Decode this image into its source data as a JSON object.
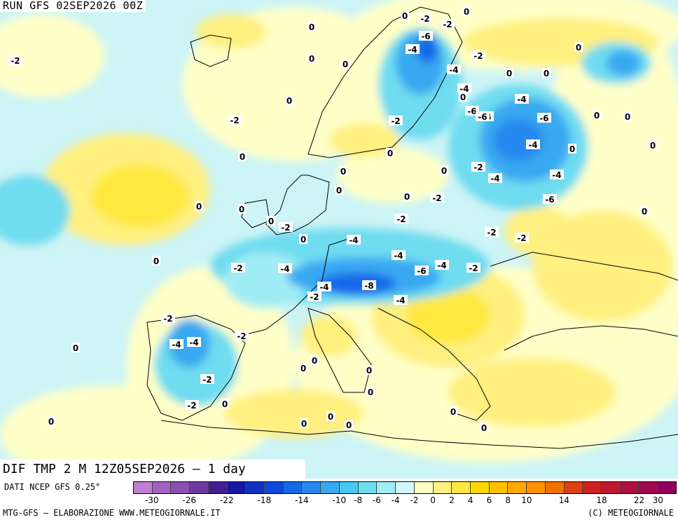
{
  "header": {
    "run_label": "RUN GFS 02SEP2026 00Z"
  },
  "title": "DIF TMP 2 M 12Z05SEP2026 – 1 day",
  "footer": {
    "source": "DATI NCEP GFS 0.25°",
    "credit_left": "MTG-GFS – ELABORAZIONE WWW.METEOGIORNALE.IT",
    "credit_right": "(C) METEOGIORNALE"
  },
  "legend": {
    "colors": [
      "#c07fd0",
      "#a064c0",
      "#8a4fb0",
      "#6f3aa0",
      "#402090",
      "#1818a0",
      "#1030c0",
      "#1048d8",
      "#1868e8",
      "#2888f0",
      "#38a8f0",
      "#48c8f0",
      "#70dcf0",
      "#a0ecf4",
      "#d0f8f8",
      "#ffffc8",
      "#fff080",
      "#ffe840",
      "#ffd800",
      "#ffc000",
      "#ffa800",
      "#ff9000",
      "#f07000",
      "#e04010",
      "#d02020",
      "#c01830",
      "#b01040",
      "#a00850",
      "#900060"
    ],
    "tick_labels": [
      "-30",
      "-26",
      "-22",
      "-18",
      "-14",
      "-10",
      "-8",
      "-6",
      "-4",
      "-2",
      "0",
      "2",
      "4",
      "6",
      "8",
      "10",
      "14",
      "18",
      "22",
      "30"
    ]
  },
  "contour_labels": [
    {
      "text": "-2"
    },
    {
      "text": "0"
    },
    {
      "text": "0"
    },
    {
      "text": "0"
    },
    {
      "text": "0"
    },
    {
      "text": "-2"
    },
    {
      "text": "-2"
    },
    {
      "text": "-6"
    },
    {
      "text": "-4"
    },
    {
      "text": "-2"
    },
    {
      "text": "-4"
    },
    {
      "text": "-2"
    },
    {
      "text": "-4"
    },
    {
      "text": "0"
    },
    {
      "text": "-4"
    },
    {
      "text": "-4"
    },
    {
      "text": "-2"
    },
    {
      "text": "-6"
    },
    {
      "text": "-6"
    },
    {
      "text": "-6"
    },
    {
      "text": "-4"
    },
    {
      "text": "0"
    },
    {
      "text": "-4"
    },
    {
      "text": "-2"
    },
    {
      "text": "-6"
    },
    {
      "text": "-4"
    },
    {
      "text": "-2"
    },
    {
      "text": "-2"
    },
    {
      "text": "-4"
    },
    {
      "text": "-2"
    },
    {
      "text": "-2"
    },
    {
      "text": "-4"
    },
    {
      "text": "-4"
    },
    {
      "text": "-8"
    },
    {
      "text": "-4"
    },
    {
      "text": "-6"
    },
    {
      "text": "-4"
    },
    {
      "text": "-2"
    },
    {
      "text": "-2"
    },
    {
      "text": "-2"
    },
    {
      "text": "-2"
    },
    {
      "text": "-4"
    },
    {
      "text": "-2"
    },
    {
      "text": "-4"
    },
    {
      "text": "-4"
    },
    {
      "text": "-2"
    },
    {
      "text": "-2"
    },
    {
      "text": "-2"
    },
    {
      "text": "0"
    },
    {
      "text": "0"
    },
    {
      "text": "0"
    },
    {
      "text": "0"
    },
    {
      "text": "0"
    },
    {
      "text": "0"
    },
    {
      "text": "0"
    },
    {
      "text": "0"
    },
    {
      "text": "0"
    },
    {
      "text": "0"
    },
    {
      "text": "0"
    },
    {
      "text": "0"
    },
    {
      "text": "0"
    },
    {
      "text": "0"
    },
    {
      "text": "0"
    },
    {
      "text": "0"
    },
    {
      "text": "0"
    },
    {
      "text": "0"
    },
    {
      "text": "0"
    },
    {
      "text": "0"
    },
    {
      "text": "0"
    },
    {
      "text": "0"
    },
    {
      "text": "0"
    },
    {
      "text": "0"
    },
    {
      "text": "0"
    },
    {
      "text": "0"
    },
    {
      "text": "0"
    },
    {
      "text": "0"
    },
    {
      "text": "0"
    },
    {
      "text": "0"
    },
    {
      "text": "0"
    },
    {
      "text": "0"
    }
  ]
}
